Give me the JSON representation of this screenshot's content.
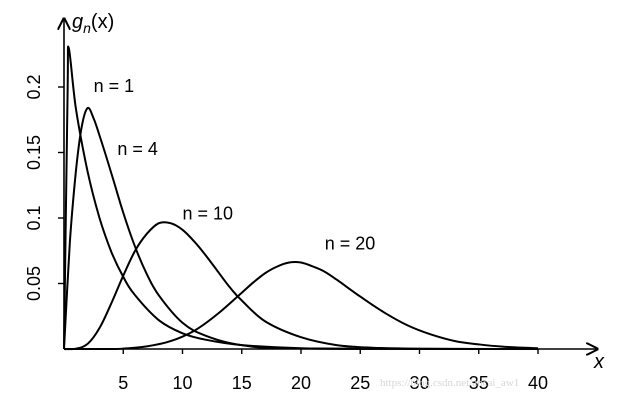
{
  "chart_data": {
    "type": "line",
    "title": "",
    "xlabel": "x",
    "ylabel": "g_n(x)",
    "ylabel_parts": {
      "base": "g",
      "sub": "n",
      "arg": "(x)"
    },
    "xlim": [
      0,
      40
    ],
    "ylim": [
      0,
      0.23
    ],
    "x_ticks": [
      5,
      10,
      15,
      20,
      25,
      30,
      35,
      40
    ],
    "y_ticks": [
      0.05,
      0.1,
      0.15,
      0.2
    ],
    "y_tick_labels": [
      "0.05",
      "0.1",
      "0.15",
      "0.2"
    ],
    "grid": false,
    "legend": "none",
    "series": [
      {
        "name": "n = 1",
        "label_at": [
          2.5,
          0.196
        ],
        "points": [
          [
            0,
            0
          ],
          [
            0.3,
            0.196
          ],
          [
            0.4,
            0.23
          ],
          [
            1,
            0.184
          ],
          [
            2,
            0.135
          ],
          [
            3,
            0.1
          ],
          [
            4,
            0.074
          ],
          [
            5,
            0.055
          ],
          [
            6,
            0.041
          ],
          [
            8,
            0.022
          ],
          [
            10,
            0.012
          ],
          [
            12,
            0.007
          ],
          [
            15,
            0.003
          ],
          [
            20,
            0.0005
          ],
          [
            25,
            0.0001
          ],
          [
            40,
            0
          ]
        ]
      },
      {
        "name": "n = 4",
        "label_at": [
          4.5,
          0.148
        ],
        "points": [
          [
            0,
            0
          ],
          [
            0.5,
            0.082
          ],
          [
            1,
            0.135
          ],
          [
            1.5,
            0.17
          ],
          [
            2,
            0.184
          ],
          [
            2.5,
            0.176
          ],
          [
            3,
            0.163
          ],
          [
            4,
            0.134
          ],
          [
            5,
            0.104
          ],
          [
            6,
            0.078
          ],
          [
            7,
            0.057
          ],
          [
            8,
            0.041
          ],
          [
            10,
            0.02
          ],
          [
            12,
            0.01
          ],
          [
            15,
            0.003
          ],
          [
            20,
            0.0004
          ],
          [
            40,
            0
          ]
        ]
      },
      {
        "name": "n = 10",
        "label_at": [
          10,
          0.099
        ],
        "points": [
          [
            0,
            0
          ],
          [
            1,
            0.0002
          ],
          [
            2,
            0.004
          ],
          [
            3,
            0.016
          ],
          [
            4,
            0.035
          ],
          [
            5,
            0.056
          ],
          [
            6,
            0.075
          ],
          [
            7,
            0.088
          ],
          [
            8,
            0.096
          ],
          [
            9,
            0.096
          ],
          [
            10,
            0.091
          ],
          [
            11,
            0.082
          ],
          [
            12,
            0.071
          ],
          [
            13,
            0.059
          ],
          [
            14,
            0.047
          ],
          [
            15,
            0.037
          ],
          [
            17,
            0.021
          ],
          [
            20,
            0.009
          ],
          [
            23,
            0.003
          ],
          [
            26,
            0.001
          ],
          [
            30,
            0.0002
          ],
          [
            40,
            0
          ]
        ]
      },
      {
        "name": "n = 20",
        "label_at": [
          22,
          0.076
        ],
        "points": [
          [
            0,
            0
          ],
          [
            4,
            0
          ],
          [
            5,
            0.0003
          ],
          [
            7,
            0.002
          ],
          [
            9,
            0.006
          ],
          [
            11,
            0.014
          ],
          [
            13,
            0.027
          ],
          [
            15,
            0.043
          ],
          [
            16,
            0.051
          ],
          [
            17,
            0.058
          ],
          [
            18,
            0.063
          ],
          [
            19,
            0.066
          ],
          [
            20,
            0.066
          ],
          [
            21,
            0.063
          ],
          [
            22,
            0.059
          ],
          [
            23,
            0.053
          ],
          [
            25,
            0.04
          ],
          [
            27,
            0.028
          ],
          [
            29,
            0.018
          ],
          [
            31,
            0.011
          ],
          [
            33,
            0.006
          ],
          [
            35,
            0.0035
          ],
          [
            37,
            0.0018
          ],
          [
            40,
            0.0006
          ]
        ]
      }
    ]
  },
  "watermark": "https://blog.csdn.net/ancai_aw1"
}
